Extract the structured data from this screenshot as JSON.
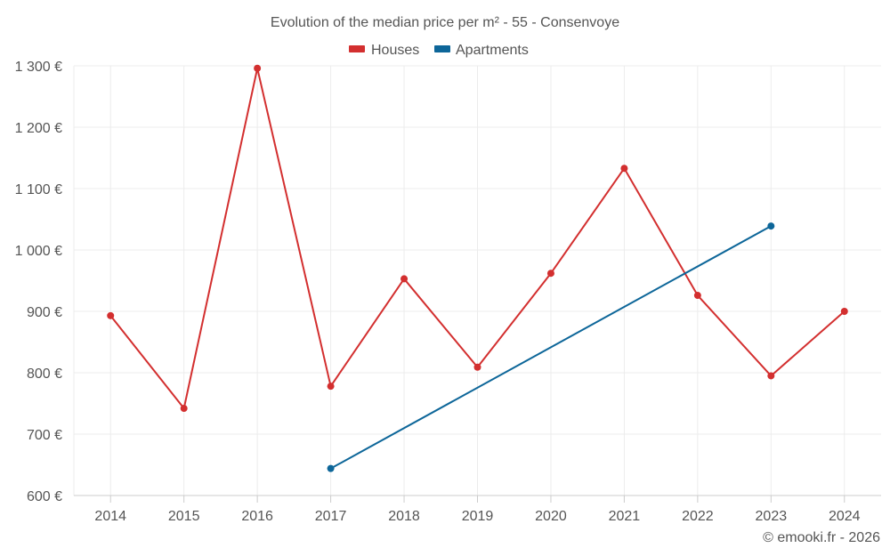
{
  "chart_data": {
    "type": "line",
    "title": "Evolution of the median price per m² - 55 - Consenvoye",
    "categories": [
      "2014",
      "2015",
      "2016",
      "2017",
      "2018",
      "2019",
      "2020",
      "2021",
      "2022",
      "2023",
      "2024"
    ],
    "series": [
      {
        "name": "Houses",
        "color": "#d32f2f",
        "values": [
          893,
          742,
          1296,
          778,
          953,
          809,
          962,
          1133,
          926,
          795,
          900
        ]
      },
      {
        "name": "Apartments",
        "color": "#0d6699",
        "values": [
          null,
          null,
          null,
          644,
          null,
          null,
          null,
          null,
          null,
          1039,
          null
        ]
      }
    ],
    "ylim": [
      600,
      1300
    ],
    "yticks": [
      600,
      700,
      800,
      900,
      1000,
      1100,
      1200,
      1300
    ],
    "ytick_labels": [
      "600 €",
      "700 €",
      "800 €",
      "900 €",
      "1 000 €",
      "1 100 €",
      "1 200 €",
      "1 300 €"
    ],
    "grid": true,
    "legend_position": "top-center",
    "credit": "© emooki.fr - 2026"
  }
}
